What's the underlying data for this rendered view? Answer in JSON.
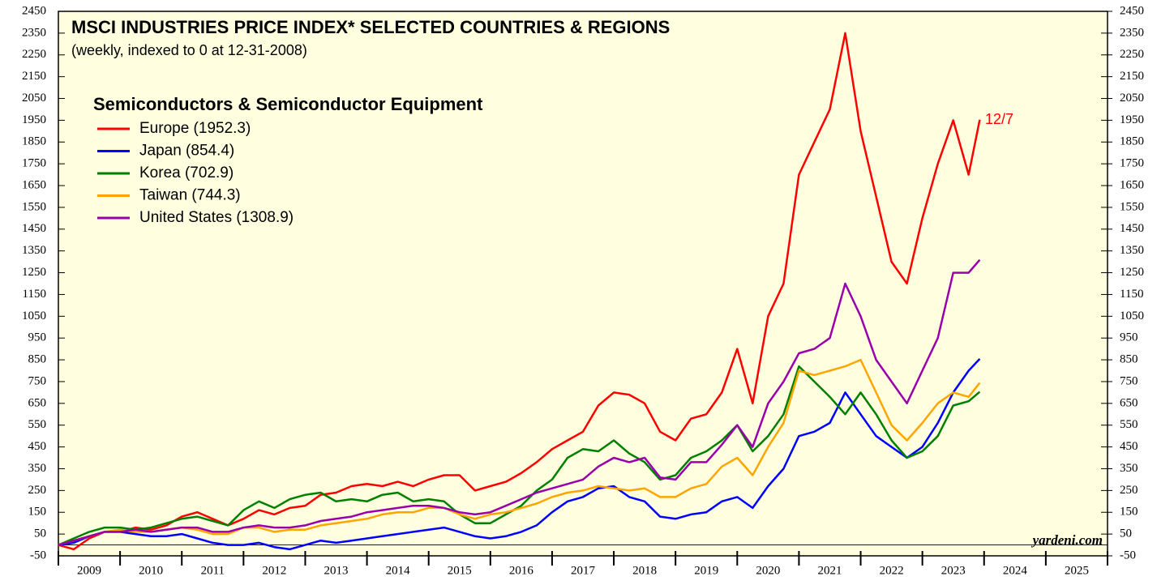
{
  "chart_data": {
    "type": "line",
    "title": "MSCI INDUSTRIES PRICE INDEX* SELECTED COUNTRIES & REGIONS",
    "subtitle": "(weekly, indexed to 0 at 12-31-2008)",
    "legend_title": "Semiconductors & Semiconductor Equipment",
    "annotations": [
      "12/7",
      "yardeni.com"
    ],
    "categories": [
      "2009",
      "2010",
      "2011",
      "2012",
      "2013",
      "2014",
      "2015",
      "2016",
      "2017",
      "2018",
      "2019",
      "2020",
      "2021",
      "2022",
      "2023",
      "2024",
      "2025"
    ],
    "xlim": [
      2009,
      2026
    ],
    "xticks": [
      2009,
      2010,
      2011,
      2012,
      2013,
      2014,
      2015,
      2016,
      2017,
      2018,
      2019,
      2020,
      2021,
      2022,
      2023,
      2024,
      2025,
      2026
    ],
    "ylim": [
      -50,
      2450
    ],
    "yticks": [
      -50,
      50,
      150,
      250,
      350,
      450,
      550,
      650,
      750,
      850,
      950,
      1050,
      1150,
      1250,
      1350,
      1450,
      1550,
      1650,
      1750,
      1850,
      1950,
      2050,
      2150,
      2250,
      2350,
      2450
    ],
    "x": [
      2009,
      2009.25,
      2009.5,
      2009.75,
      2010,
      2010.25,
      2010.5,
      2010.75,
      2011,
      2011.25,
      2011.5,
      2011.75,
      2012,
      2012.25,
      2012.5,
      2012.75,
      2013,
      2013.25,
      2013.5,
      2013.75,
      2014,
      2014.25,
      2014.5,
      2014.75,
      2015,
      2015.25,
      2015.5,
      2015.75,
      2016,
      2016.25,
      2016.5,
      2016.75,
      2017,
      2017.25,
      2017.5,
      2017.75,
      2018,
      2018.25,
      2018.5,
      2018.75,
      2019,
      2019.25,
      2019.5,
      2019.75,
      2020,
      2020.25,
      2020.5,
      2020.75,
      2021,
      2021.25,
      2021.5,
      2021.75,
      2022,
      2022.25,
      2022.5,
      2022.75,
      2023,
      2023.25,
      2023.5,
      2023.75,
      2023.93
    ],
    "series": [
      {
        "name": "Europe (1952.3)",
        "color": "#ff0000",
        "values": [
          0,
          -20,
          30,
          60,
          60,
          80,
          70,
          90,
          130,
          150,
          120,
          90,
          120,
          160,
          140,
          170,
          180,
          230,
          240,
          270,
          280,
          270,
          290,
          270,
          300,
          320,
          320,
          250,
          270,
          290,
          330,
          380,
          440,
          480,
          520,
          640,
          700,
          690,
          650,
          520,
          480,
          580,
          600,
          700,
          900,
          650,
          1050,
          1200,
          1700,
          1850,
          2000,
          2350,
          1900,
          1600,
          1300,
          1200,
          1500,
          1750,
          1950,
          1700,
          1952.3
        ]
      },
      {
        "name": "Japan (854.4)",
        "color": "#0000ff",
        "values": [
          0,
          10,
          40,
          60,
          60,
          50,
          40,
          40,
          50,
          30,
          10,
          0,
          0,
          10,
          -10,
          -20,
          0,
          20,
          10,
          20,
          30,
          40,
          50,
          60,
          70,
          80,
          60,
          40,
          30,
          40,
          60,
          90,
          150,
          200,
          220,
          260,
          270,
          220,
          200,
          130,
          120,
          140,
          150,
          200,
          220,
          170,
          270,
          350,
          500,
          520,
          560,
          700,
          600,
          500,
          450,
          400,
          450,
          560,
          700,
          800,
          854.4
        ]
      },
      {
        "name": "Korea (702.9)",
        "color": "#008000",
        "values": [
          0,
          30,
          60,
          80,
          80,
          70,
          80,
          100,
          120,
          130,
          110,
          90,
          160,
          200,
          170,
          210,
          230,
          240,
          200,
          210,
          200,
          230,
          240,
          200,
          210,
          200,
          140,
          100,
          100,
          140,
          180,
          250,
          300,
          400,
          440,
          430,
          480,
          420,
          380,
          300,
          320,
          400,
          430,
          480,
          550,
          430,
          500,
          600,
          820,
          750,
          680,
          600,
          700,
          600,
          480,
          400,
          430,
          500,
          640,
          660,
          702.9
        ]
      },
      {
        "name": "Taiwan (744.3)",
        "color": "#ffa500",
        "values": [
          0,
          20,
          40,
          60,
          70,
          60,
          60,
          70,
          80,
          70,
          50,
          50,
          80,
          80,
          60,
          70,
          70,
          90,
          100,
          110,
          120,
          140,
          150,
          150,
          170,
          170,
          140,
          120,
          140,
          150,
          170,
          190,
          220,
          240,
          250,
          270,
          260,
          250,
          260,
          220,
          220,
          260,
          280,
          360,
          400,
          320,
          450,
          560,
          800,
          780,
          800,
          820,
          850,
          700,
          550,
          480,
          560,
          650,
          700,
          680,
          744.3
        ]
      },
      {
        "name": "United States (1308.9)",
        "color": "#9900aa",
        "values": [
          0,
          20,
          40,
          60,
          60,
          70,
          60,
          70,
          80,
          80,
          60,
          60,
          80,
          90,
          80,
          80,
          90,
          110,
          120,
          130,
          150,
          160,
          170,
          180,
          180,
          170,
          150,
          140,
          150,
          180,
          210,
          240,
          260,
          280,
          300,
          360,
          400,
          380,
          400,
          310,
          300,
          380,
          380,
          460,
          550,
          450,
          650,
          750,
          880,
          900,
          950,
          1200,
          1050,
          850,
          750,
          650,
          800,
          950,
          1250,
          1250,
          1308.9
        ]
      }
    ],
    "background": "#ffffe0"
  }
}
